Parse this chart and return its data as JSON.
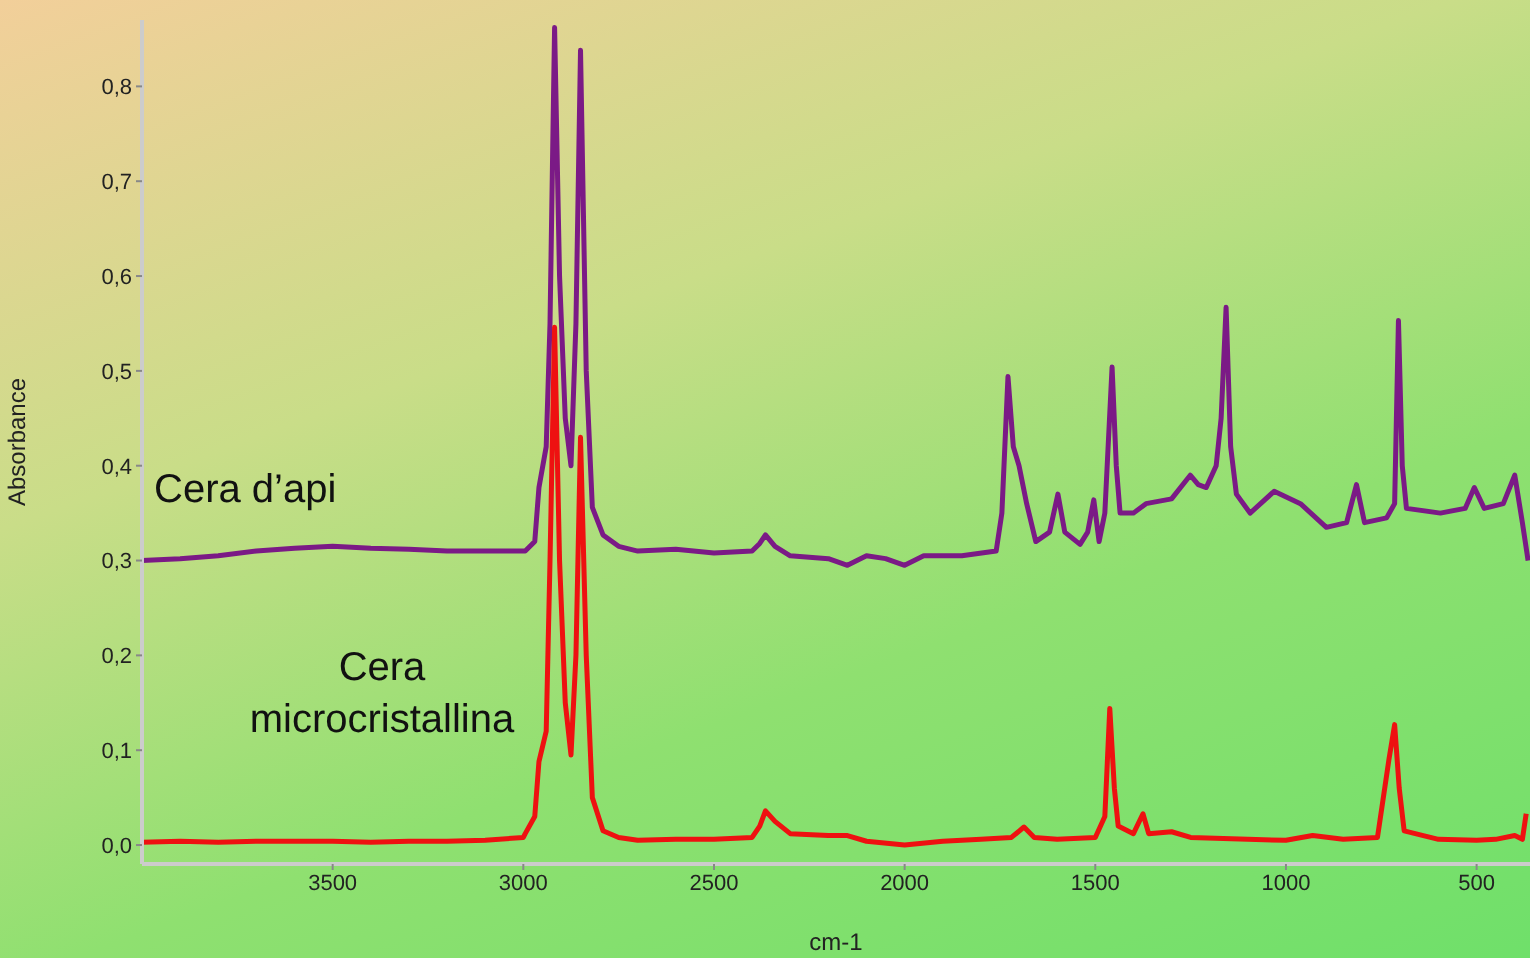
{
  "chart_data": {
    "type": "line",
    "xlabel": "cm-1",
    "ylabel": "Absorbance",
    "xlim": [
      4000,
      360
    ],
    "xticks": [
      3500,
      3000,
      2500,
      2000,
      1500,
      1000,
      500
    ],
    "ylim": [
      -0.02,
      0.87
    ],
    "yticks": [
      {
        "value": 0,
        "label": "0,0"
      },
      {
        "value": 0.1,
        "label": "0,1"
      },
      {
        "value": 0.2,
        "label": "0,2"
      },
      {
        "value": 0.3,
        "label": "0,3"
      },
      {
        "value": 0.4,
        "label": "0,4"
      },
      {
        "value": 0.5,
        "label": "0,5"
      },
      {
        "value": 0.6,
        "label": "0,6"
      },
      {
        "value": 0.7,
        "label": "0,7"
      },
      {
        "value": 0.8,
        "label": "0,8"
      }
    ],
    "marker": "none",
    "line_style": "solid",
    "series": [
      {
        "name": "Cera d’api",
        "color": "#7b1a86",
        "x": [
          4000,
          3900,
          3800,
          3700,
          3600,
          3500,
          3400,
          3300,
          3200,
          3100,
          3000,
          2995,
          2970,
          2959,
          2940,
          2930,
          2918,
          2905,
          2890,
          2875,
          2862,
          2850,
          2835,
          2819,
          2791,
          2750,
          2700,
          2600,
          2500,
          2400,
          2380,
          2365,
          2340,
          2300,
          2200,
          2150,
          2100,
          2050,
          2000,
          1950,
          1850,
          1760,
          1745,
          1729,
          1715,
          1700,
          1680,
          1656,
          1620,
          1598,
          1580,
          1540,
          1520,
          1504,
          1490,
          1475,
          1456,
          1445,
          1435,
          1400,
          1367,
          1300,
          1251,
          1230,
          1209,
          1183,
          1170,
          1157,
          1145,
          1130,
          1094,
          1031,
          962,
          894,
          841,
          815,
          794,
          736,
          715,
          705,
          695,
          684,
          595,
          530,
          506,
          480,
          430,
          400,
          380,
          365
        ],
        "values": [
          0.3,
          0.302,
          0.305,
          0.31,
          0.313,
          0.315,
          0.313,
          0.312,
          0.31,
          0.31,
          0.31,
          0.31,
          0.32,
          0.377,
          0.42,
          0.55,
          0.862,
          0.6,
          0.45,
          0.4,
          0.55,
          0.838,
          0.5,
          0.356,
          0.327,
          0.315,
          0.31,
          0.312,
          0.308,
          0.31,
          0.318,
          0.327,
          0.315,
          0.305,
          0.302,
          0.295,
          0.305,
          0.302,
          0.295,
          0.305,
          0.305,
          0.31,
          0.35,
          0.494,
          0.42,
          0.4,
          0.36,
          0.32,
          0.33,
          0.37,
          0.33,
          0.317,
          0.33,
          0.364,
          0.32,
          0.35,
          0.504,
          0.4,
          0.35,
          0.35,
          0.36,
          0.365,
          0.39,
          0.38,
          0.377,
          0.4,
          0.45,
          0.567,
          0.42,
          0.37,
          0.35,
          0.373,
          0.36,
          0.335,
          0.34,
          0.38,
          0.34,
          0.345,
          0.36,
          0.553,
          0.4,
          0.355,
          0.35,
          0.355,
          0.377,
          0.355,
          0.36,
          0.39,
          0.34,
          0.3
        ]
      },
      {
        "name": "Cera microcristallina",
        "color": "#ee1111",
        "x": [
          4000,
          3900,
          3800,
          3700,
          3600,
          3500,
          3400,
          3300,
          3200,
          3100,
          3000,
          2995,
          2970,
          2959,
          2940,
          2930,
          2918,
          2905,
          2890,
          2875,
          2862,
          2850,
          2835,
          2819,
          2791,
          2750,
          2700,
          2600,
          2500,
          2400,
          2380,
          2365,
          2340,
          2300,
          2200,
          2150,
          2100,
          2000,
          1900,
          1800,
          1720,
          1687,
          1660,
          1600,
          1500,
          1475,
          1462,
          1450,
          1440,
          1400,
          1375,
          1360,
          1300,
          1250,
          1100,
          1000,
          930,
          850,
          760,
          730,
          715,
          703,
          690,
          600,
          500,
          450,
          400,
          380,
          370
        ],
        "values": [
          0.003,
          0.004,
          0.003,
          0.004,
          0.004,
          0.004,
          0.003,
          0.004,
          0.004,
          0.005,
          0.008,
          0.012,
          0.03,
          0.088,
          0.12,
          0.3,
          0.546,
          0.3,
          0.15,
          0.095,
          0.2,
          0.43,
          0.2,
          0.05,
          0.015,
          0.008,
          0.005,
          0.006,
          0.006,
          0.008,
          0.02,
          0.036,
          0.025,
          0.012,
          0.01,
          0.01,
          0.004,
          0.0,
          0.004,
          0.006,
          0.008,
          0.019,
          0.008,
          0.006,
          0.008,
          0.03,
          0.144,
          0.06,
          0.02,
          0.012,
          0.033,
          0.012,
          0.014,
          0.008,
          0.006,
          0.005,
          0.01,
          0.006,
          0.008,
          0.09,
          0.127,
          0.06,
          0.015,
          0.006,
          0.005,
          0.006,
          0.01,
          0.006,
          0.033
        ]
      }
    ]
  }
}
